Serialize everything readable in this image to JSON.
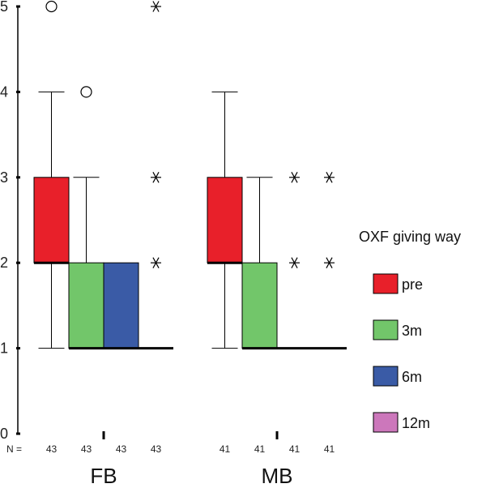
{
  "chart_data": {
    "type": "boxplot",
    "title": "",
    "xlabel": "",
    "ylabel": "",
    "ylim": [
      0,
      5
    ],
    "yticks": [
      0,
      1,
      2,
      3,
      4,
      5
    ],
    "n_prefix": "N =",
    "groups": [
      {
        "name": "FB",
        "boxes": [
          {
            "series": "pre",
            "n": "43",
            "min": 1,
            "q1": 2,
            "median": 2,
            "q3": 3,
            "max": 4,
            "outliers": [
              5
            ],
            "extremes": []
          },
          {
            "series": "3m",
            "n": "43",
            "min": 1,
            "q1": 1,
            "median": 1,
            "q3": 2,
            "max": 3,
            "outliers": [
              4
            ],
            "extremes": []
          },
          {
            "series": "6m",
            "n": "43",
            "min": 1,
            "q1": 1,
            "median": 1,
            "q3": 2,
            "max": 2,
            "outliers": [],
            "extremes": []
          },
          {
            "series": "12m",
            "n": "43",
            "min": 1,
            "q1": 1,
            "median": 1,
            "q3": 1,
            "max": 1,
            "outliers": [],
            "extremes": [
              2,
              3,
              5
            ]
          }
        ]
      },
      {
        "name": "MB",
        "boxes": [
          {
            "series": "pre",
            "n": "41",
            "min": 1,
            "q1": 2,
            "median": 2,
            "q3": 3,
            "max": 4,
            "outliers": [],
            "extremes": []
          },
          {
            "series": "3m",
            "n": "41",
            "min": 1,
            "q1": 1,
            "median": 1,
            "q3": 2,
            "max": 3,
            "outliers": [],
            "extremes": []
          },
          {
            "series": "6m",
            "n": "41",
            "min": 1,
            "q1": 1,
            "median": 1,
            "q3": 1,
            "max": 1,
            "outliers": [],
            "extremes": [
              2,
              3
            ]
          },
          {
            "series": "12m",
            "n": "41",
            "min": 1,
            "q1": 1,
            "median": 1,
            "q3": 1,
            "max": 1,
            "outliers": [],
            "extremes": [
              2,
              3
            ]
          }
        ]
      }
    ],
    "legend": {
      "title": "OXF giving way",
      "placement": "right",
      "entries": [
        {
          "name": "pre",
          "color": "#e8202a"
        },
        {
          "name": "3m",
          "color": "#72c66a"
        },
        {
          "name": "6m",
          "color": "#3a5ba6"
        },
        {
          "name": "12m",
          "color": "#cc77bb"
        }
      ]
    }
  }
}
